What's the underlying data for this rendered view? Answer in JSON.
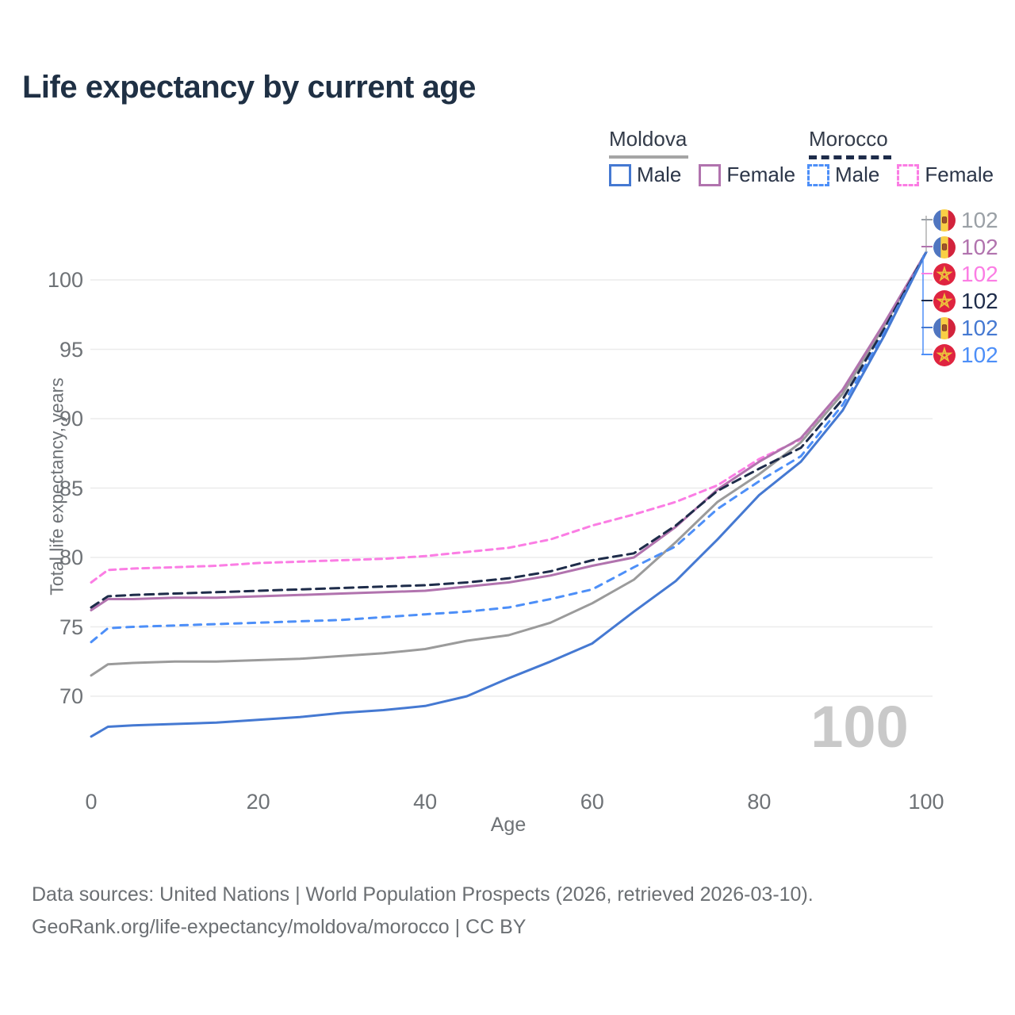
{
  "title": "Life expectancy by current age",
  "legend": {
    "moldova": {
      "label": "Moldova",
      "male_label": "Male",
      "female_label": "Female"
    },
    "morocco": {
      "label": "Morocco",
      "male_label": "Male",
      "female_label": "Female"
    }
  },
  "chart_data": {
    "type": "line",
    "title": "Life expectancy by current age",
    "xlabel": "Age",
    "ylabel": "Total life expectancy, years",
    "xlim": [
      0,
      100
    ],
    "ylim": [
      66,
      103
    ],
    "grid": true,
    "xticks": [
      0,
      20,
      40,
      60,
      80,
      100
    ],
    "yticks": [
      70,
      75,
      80,
      85,
      90,
      95,
      100
    ],
    "ages": [
      0,
      2,
      5,
      10,
      15,
      20,
      25,
      30,
      35,
      40,
      45,
      50,
      55,
      60,
      65,
      70,
      75,
      80,
      85,
      90,
      95,
      100
    ],
    "series": [
      {
        "name": "Morocco Female",
        "country": "Morocco",
        "sex": "Female",
        "color": "#fb7de4",
        "dash": "8 6",
        "values": [
          78.2,
          79.1,
          79.2,
          79.3,
          79.4,
          79.6,
          79.7,
          79.8,
          79.9,
          80.1,
          80.4,
          80.7,
          81.3,
          82.3,
          83.1,
          84.0,
          85.2,
          87.1,
          88.5,
          91.9,
          96.8,
          102
        ]
      },
      {
        "name": "Moldova Total",
        "country": "Moldova",
        "sex": "Total",
        "color": "#9b9b9b",
        "dash": "solid",
        "values": [
          71.5,
          72.3,
          72.4,
          72.5,
          72.5,
          72.6,
          72.7,
          72.9,
          73.1,
          73.4,
          74.0,
          74.4,
          75.3,
          76.7,
          78.4,
          81.1,
          84.0,
          86.0,
          88.3,
          91.8,
          96.7,
          102
        ]
      },
      {
        "name": "Moldova Female",
        "country": "Moldova",
        "sex": "Female",
        "color": "#b173ae",
        "dash": "solid",
        "values": [
          76.2,
          77.0,
          77.0,
          77.1,
          77.1,
          77.2,
          77.3,
          77.4,
          77.5,
          77.6,
          77.9,
          78.2,
          78.7,
          79.4,
          80.0,
          82.2,
          84.9,
          86.9,
          88.6,
          92.1,
          96.9,
          102
        ]
      },
      {
        "name": "Morocco Total",
        "country": "Morocco",
        "sex": "Total",
        "color": "#1e2c4a",
        "dash": "11 7",
        "values": [
          76.4,
          77.2,
          77.3,
          77.4,
          77.5,
          77.6,
          77.7,
          77.8,
          77.9,
          78.0,
          78.2,
          78.5,
          79.0,
          79.8,
          80.3,
          82.3,
          84.8,
          86.4,
          87.9,
          91.4,
          96.5,
          102
        ]
      },
      {
        "name": "Morocco Male",
        "country": "Morocco",
        "sex": "Male",
        "color": "#4d8ff8",
        "dash": "9 8",
        "values": [
          73.9,
          74.9,
          75.0,
          75.1,
          75.2,
          75.3,
          75.4,
          75.5,
          75.7,
          75.9,
          76.1,
          76.4,
          77.0,
          77.7,
          79.3,
          80.8,
          83.5,
          85.5,
          87.3,
          91.0,
          96.2,
          102
        ]
      },
      {
        "name": "Moldova Male",
        "country": "Moldova",
        "sex": "Male",
        "color": "#4579d2",
        "dash": "solid",
        "values": [
          67.1,
          67.8,
          67.9,
          68.0,
          68.1,
          68.3,
          68.5,
          68.8,
          69.0,
          69.3,
          70.0,
          71.3,
          72.5,
          73.8,
          76.1,
          78.3,
          81.3,
          84.5,
          86.9,
          90.6,
          96.0,
          102
        ]
      }
    ],
    "end_labels": [
      {
        "flag": "moldova",
        "value": "102",
        "color": "#9aa0a6"
      },
      {
        "flag": "moldova",
        "value": "102",
        "color": "#b173ae"
      },
      {
        "flag": "morocco",
        "value": "102",
        "color": "#fb7de4"
      },
      {
        "flag": "morocco",
        "value": "102",
        "color": "#1e2c4a"
      },
      {
        "flag": "moldova",
        "value": "102",
        "color": "#4579d2"
      },
      {
        "flag": "morocco",
        "value": "102",
        "color": "#4d8ff8"
      }
    ],
    "legend_position": "top-right",
    "hover_age_indicator": "100"
  },
  "footer": {
    "line1": "Data sources: United Nations | World Population Prospects (2026, retrieved 2026-03-10).",
    "line2": "GeoRank.org/life-expectancy/moldova/morocco | CC BY"
  },
  "colors": {
    "title": "#1f3044",
    "axis_text": "#6e7276",
    "gridline": "#ebebeb",
    "watermark": "#c9c9c9"
  }
}
